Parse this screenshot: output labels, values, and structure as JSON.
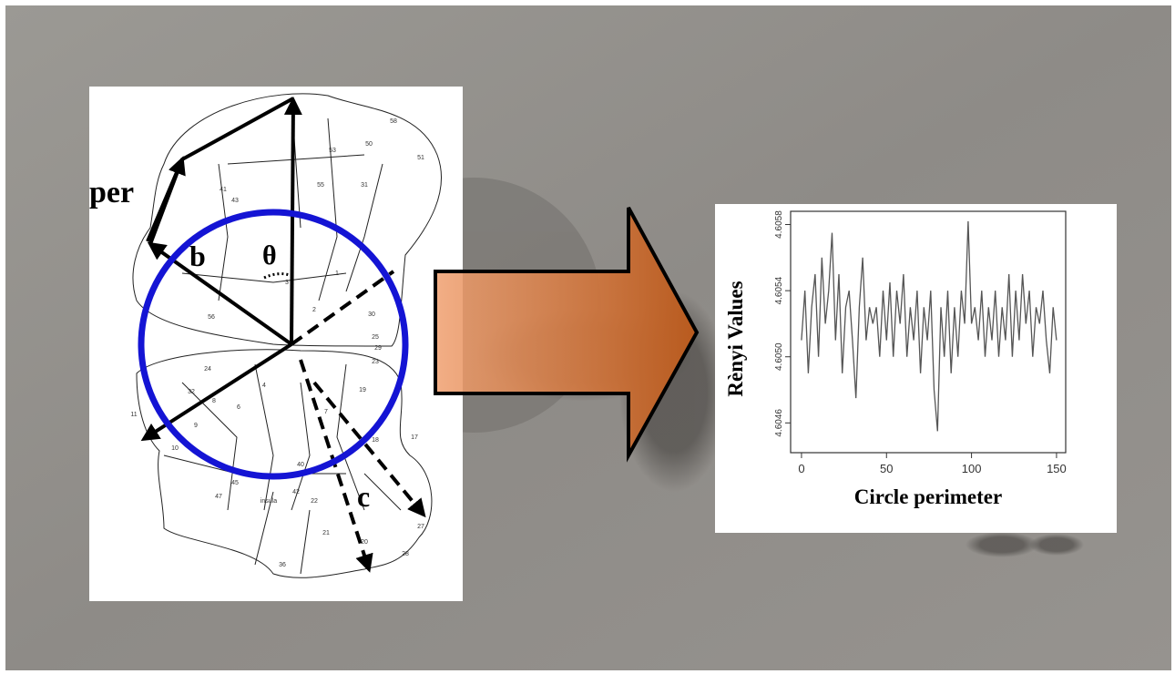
{
  "diagram": {
    "labels": {
      "per": "per",
      "b": "b",
      "theta": "θ",
      "c": "c"
    },
    "regions": [
      "58",
      "50",
      "51",
      "55",
      "53",
      "31",
      "41",
      "43",
      "1",
      "2",
      "3",
      "30",
      "23",
      "24",
      "32",
      "9",
      "10",
      "11",
      "45",
      "47",
      "insula",
      "22",
      "21",
      "20",
      "36",
      "27",
      "28",
      "17",
      "18",
      "19",
      "7",
      "6",
      "4",
      "40",
      "42",
      "8",
      "56",
      "29",
      "25"
    ]
  },
  "chart_data": {
    "type": "line",
    "xlabel": "Circle perimeter",
    "ylabel": "Rènyi Values",
    "color": "#555555",
    "x": [
      0,
      2,
      4,
      6,
      8,
      10,
      12,
      14,
      16,
      18,
      20,
      22,
      24,
      26,
      28,
      30,
      32,
      34,
      36,
      38,
      40,
      42,
      44,
      46,
      48,
      50,
      52,
      54,
      56,
      58,
      60,
      62,
      64,
      66,
      68,
      70,
      72,
      74,
      76,
      78,
      80,
      82,
      84,
      86,
      88,
      90,
      92,
      94,
      96,
      98,
      100,
      102,
      104,
      106,
      108,
      110,
      112,
      114,
      116,
      118,
      120,
      122,
      124,
      126,
      128,
      130,
      132,
      134,
      136,
      138,
      140,
      142,
      144,
      146,
      148,
      150
    ],
    "values": [
      4.6051,
      4.6054,
      4.6049,
      4.6053,
      4.6055,
      4.605,
      4.6056,
      4.6052,
      4.6054,
      4.60575,
      4.6051,
      4.6055,
      4.6049,
      4.6053,
      4.6054,
      4.6051,
      4.60475,
      4.6053,
      4.6056,
      4.6051,
      4.6053,
      4.6052,
      4.6053,
      4.605,
      4.6054,
      4.6051,
      4.60545,
      4.605,
      4.6054,
      4.6052,
      4.6055,
      4.605,
      4.6053,
      4.6051,
      4.6054,
      4.6049,
      4.6053,
      4.6051,
      4.6054,
      4.6048,
      4.60455,
      4.6053,
      4.605,
      4.6054,
      4.6049,
      4.6053,
      4.605,
      4.6054,
      4.6052,
      4.60582,
      4.6052,
      4.6053,
      4.6051,
      4.6054,
      4.605,
      4.6053,
      4.6051,
      4.6054,
      4.605,
      4.6053,
      4.6051,
      4.6055,
      4.605,
      4.6054,
      4.6051,
      4.6055,
      4.6052,
      4.6054,
      4.605,
      4.6053,
      4.6052,
      4.6054,
      4.6051,
      4.6049,
      4.6053,
      4.6051
    ],
    "xlim": [
      -6.4,
      155.4
    ],
    "ylim": [
      4.60442,
      4.60588
    ],
    "xticks": [
      0,
      50,
      100,
      150
    ],
    "yticks": [
      4.6046,
      {
        "value": 4.605,
        "label": "4.6050"
      },
      4.6054,
      4.6058
    ]
  }
}
